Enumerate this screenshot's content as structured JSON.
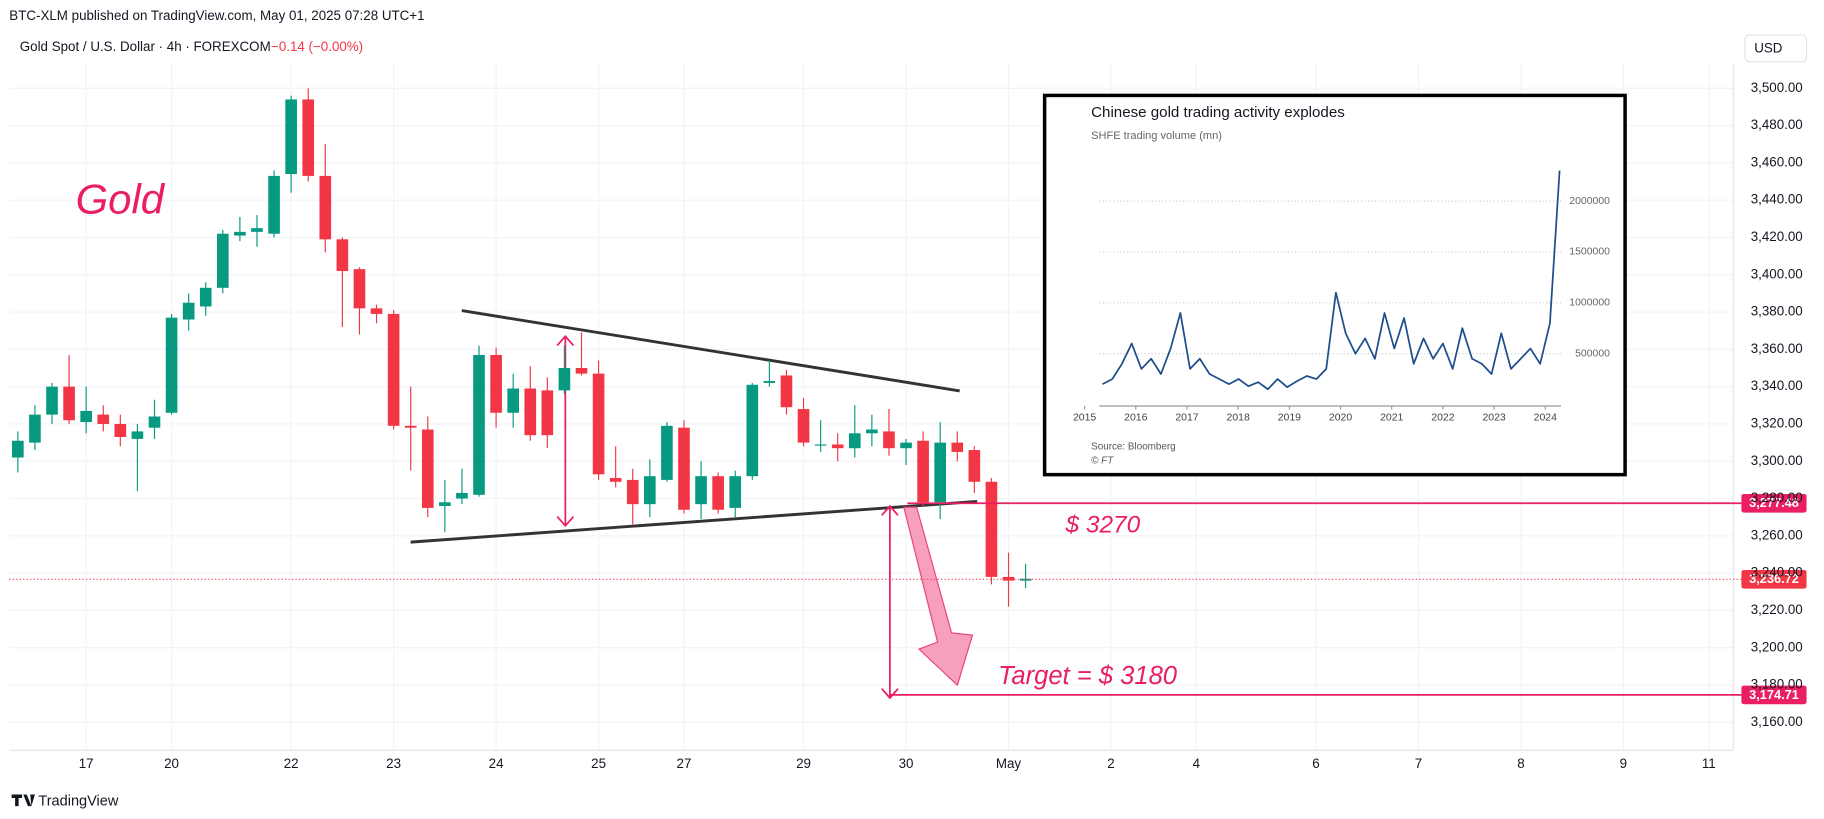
{
  "header": {
    "published": "BTC-XLM published on TradingView.com, May 01, 2025 07:28 UTC+1",
    "symbol": "Gold Spot / U.S. Dollar · 4h · FOREXCOM",
    "change": "−0.14 (−0.00%)",
    "currency": "USD"
  },
  "footer": {
    "brand": "TradingView"
  },
  "chart_data": [
    {
      "type": "candlestick",
      "open": [
        3302,
        3310,
        3325,
        3340,
        3321,
        3325,
        3320,
        3312,
        3318,
        3326,
        3376,
        3383,
        3393,
        3421,
        3423,
        3422,
        3454,
        3494,
        3453,
        3419,
        3403,
        3382,
        3379,
        3319,
        3317,
        3276,
        3280,
        3282,
        3357,
        3326,
        3339,
        3338,
        3338,
        3350,
        3347,
        3291,
        3290,
        3277,
        3290,
        3318,
        3277,
        3292,
        3275,
        3292,
        3342,
        3346,
        3328,
        3309,
        3309,
        3307,
        3315,
        3316,
        3307,
        3311,
        3278,
        3310,
        3306,
        3289,
        3238,
        3236
      ],
      "high": [
        3316,
        3330,
        3342,
        3357,
        3340,
        3330,
        3325,
        3320,
        3333,
        3379,
        3390,
        3396,
        3424,
        3431,
        3432,
        3456,
        3496,
        3500,
        3470,
        3420,
        3404,
        3384,
        3381,
        3340,
        3324,
        3290,
        3296,
        3362,
        3361,
        3347,
        3351,
        3345,
        3362,
        3369,
        3354,
        3308,
        3296,
        3301,
        3321,
        3322,
        3300,
        3294,
        3295,
        3342,
        3354,
        3349,
        3334,
        3322,
        3315,
        3330,
        3325,
        3328,
        3312,
        3316,
        3321,
        3316,
        3308,
        3291,
        3251,
        3245
      ],
      "low": [
        3294,
        3306,
        3320,
        3320,
        3315,
        3316,
        3308,
        3284,
        3312,
        3325,
        3370,
        3378,
        3390,
        3418,
        3415,
        3420,
        3444,
        3450,
        3412,
        3372,
        3368,
        3374,
        3317,
        3295,
        3270,
        3262,
        3277,
        3281,
        3318,
        3318,
        3311,
        3307,
        3336,
        3346,
        3290,
        3286,
        3266,
        3270,
        3289,
        3272,
        3269,
        3272,
        3270,
        3290,
        3340,
        3325,
        3308,
        3305,
        3300,
        3302,
        3308,
        3303,
        3298,
        3276,
        3269,
        3300,
        3283,
        3234,
        3222,
        3232
      ],
      "close": [
        3311,
        3325,
        3340,
        3322,
        3327,
        3320,
        3313,
        3316,
        3324,
        3377,
        3385,
        3393,
        3422,
        3423,
        3425,
        3453,
        3494,
        3453,
        3419,
        3402,
        3382,
        3379,
        3319,
        3318,
        3275,
        3278,
        3283,
        3357,
        3326,
        3339,
        3314,
        3314,
        3350,
        3347,
        3293,
        3289,
        3277,
        3292,
        3319,
        3274,
        3292,
        3274,
        3292,
        3341,
        3343,
        3329,
        3310,
        3309,
        3307,
        3315,
        3317,
        3307,
        3310,
        3278,
        3310,
        3305,
        3289,
        3238,
        3236,
        3237
      ],
      "up_color": "#089981",
      "down_color": "#f23645",
      "xlim": [
        -0.5,
        100.5
      ],
      "xticks": [
        {
          "value": 4,
          "label": "17"
        },
        {
          "value": 9,
          "label": "20"
        },
        {
          "value": 16,
          "label": "22"
        },
        {
          "value": 22,
          "label": "23"
        },
        {
          "value": 28,
          "label": "24"
        },
        {
          "value": 34,
          "label": "25"
        },
        {
          "value": 39,
          "label": "27"
        },
        {
          "value": 46,
          "label": "29"
        },
        {
          "value": 52,
          "label": "30"
        },
        {
          "value": 58,
          "label": "May"
        },
        {
          "value": 64,
          "label": "2"
        },
        {
          "value": 69,
          "label": "4"
        },
        {
          "value": 76,
          "label": "6"
        },
        {
          "value": 82,
          "label": "7"
        },
        {
          "value": 88,
          "label": "8"
        },
        {
          "value": 94,
          "label": "9"
        },
        {
          "value": 99,
          "label": "11"
        }
      ],
      "ylim": [
        3145,
        3513
      ],
      "yticks": [
        {
          "value": 3160,
          "label": "3,160.00"
        },
        {
          "value": 3180,
          "label": "3,180.00"
        },
        {
          "value": 3200,
          "label": "3,200.00"
        },
        {
          "value": 3220,
          "label": "3,220.00"
        },
        {
          "value": 3240,
          "label": "3,240.00"
        },
        {
          "value": 3260,
          "label": "3,260.00"
        },
        {
          "value": 3280,
          "label": "3,280.00"
        },
        {
          "value": 3300,
          "label": "3,300.00"
        },
        {
          "value": 3320,
          "label": "3,320.00"
        },
        {
          "value": 3340,
          "label": "3,340.00"
        },
        {
          "value": 3360,
          "label": "3,360.00"
        },
        {
          "value": 3380,
          "label": "3,380.00"
        },
        {
          "value": 3400,
          "label": "3,400.00"
        },
        {
          "value": 3420,
          "label": "3,420.00"
        },
        {
          "value": 3440,
          "label": "3,440.00"
        },
        {
          "value": 3460,
          "label": "3,460.00"
        },
        {
          "value": 3480,
          "label": "3,480.00"
        },
        {
          "value": 3500,
          "label": "3,500.00"
        }
      ],
      "grid": true,
      "price_lines": [
        {
          "value": 3277.48,
          "label": "3,277.48",
          "color": "#e91e63"
        },
        {
          "value": 3236.72,
          "label": "3,236.72",
          "color": "#f23645",
          "style": "dotted"
        },
        {
          "value": 3174.71,
          "label": "3,174.71",
          "color": "#e91e63"
        }
      ],
      "annotations": [
        "Gold",
        "$ 3270",
        "Target = $ 3180"
      ]
    },
    {
      "type": "line",
      "title": "Chinese gold trading activity explodes",
      "subtitle": "SHFE trading volume (mn)",
      "x": [
        2015.35,
        2015.54,
        2015.73,
        2015.92,
        2016.11,
        2016.3,
        2016.49,
        2016.68,
        2016.87,
        2017.06,
        2017.25,
        2017.44,
        2017.63,
        2017.82,
        2018.01,
        2018.2,
        2018.39,
        2018.58,
        2018.77,
        2018.96,
        2019.15,
        2019.34,
        2019.53,
        2019.72,
        2019.91,
        2020.1,
        2020.29,
        2020.48,
        2020.67,
        2020.86,
        2021.05,
        2021.24,
        2021.43,
        2021.62,
        2021.81,
        2022.0,
        2022.19,
        2022.38,
        2022.57,
        2022.76,
        2022.95,
        2023.14,
        2023.33,
        2023.52,
        2023.71,
        2023.9,
        2024.09,
        2024.28
      ],
      "series": [
        {
          "color": "#1f4e8c",
          "values": [
            200000,
            250000,
            400000,
            600000,
            350000,
            450000,
            300000,
            550000,
            900000,
            350000,
            450000,
            300000,
            250000,
            200000,
            250000,
            180000,
            220000,
            150000,
            250000,
            170000,
            230000,
            280000,
            250000,
            350000,
            1100000,
            700000,
            500000,
            650000,
            450000,
            900000,
            550000,
            850000,
            400000,
            650000,
            450000,
            600000,
            350000,
            750000,
            450000,
            400000,
            300000,
            700000,
            350000,
            450000,
            550000,
            400000,
            800000,
            2300000
          ]
        }
      ],
      "xlim": [
        2014.9,
        2024.4
      ],
      "xticks": [
        2015,
        2016,
        2017,
        2018,
        2019,
        2020,
        2021,
        2022,
        2023,
        2024
      ],
      "ylim": [
        0,
        2400000
      ],
      "yticks": [
        500000,
        1000000,
        1500000,
        2000000
      ],
      "source": "Source: Bloomberg",
      "credit": "© FT"
    }
  ]
}
